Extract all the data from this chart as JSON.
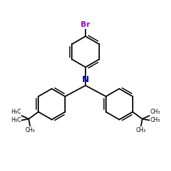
{
  "bg_color": "#ffffff",
  "bond_color": "#000000",
  "N_color": "#0000cd",
  "Br_color": "#9400d3",
  "bond_width": 1.3,
  "figsize": [
    2.5,
    2.5
  ],
  "dpi": 100,
  "font_size_atom": 8.0,
  "font_size_methyl": 5.8,
  "ring_r": 0.48,
  "xlim": [
    -2.6,
    2.6
  ],
  "ylim": [
    -2.5,
    2.5
  ]
}
